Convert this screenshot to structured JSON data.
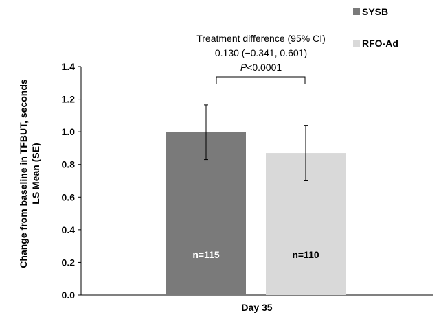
{
  "chart_data": {
    "type": "bar",
    "title": "",
    "categories": [
      "Day 35"
    ],
    "series": [
      {
        "name": "SYSB",
        "values": [
          1.0
        ],
        "se_low": [
          0.83
        ],
        "se_high": [
          1.165
        ],
        "n_label": "n=115",
        "color": "#7a7a7a",
        "label_color": "#ffffff"
      },
      {
        "name": "RFO-Ad",
        "values": [
          0.87
        ],
        "se_low": [
          0.7
        ],
        "se_high": [
          1.04
        ],
        "n_label": "n=110",
        "color": "#d9d9d9",
        "label_color": "#000000"
      }
    ],
    "ylabel_line1": "Change from baseline in TFBUT, seconds",
    "ylabel_line2": "LS Mean (SE)",
    "ylim": [
      0,
      1.4
    ],
    "yticks": [
      "0.0",
      "0.2",
      "0.4",
      "0.6",
      "0.8",
      "1.0",
      "1.2",
      "1.4"
    ],
    "legend_position": "top-right",
    "grid": false,
    "annotation": {
      "line1": "Treatment difference (95% CI)",
      "line2": "0.130 (−0.341, 0.601)",
      "p_italic": "P",
      "p_rest": "<0.0001"
    }
  }
}
